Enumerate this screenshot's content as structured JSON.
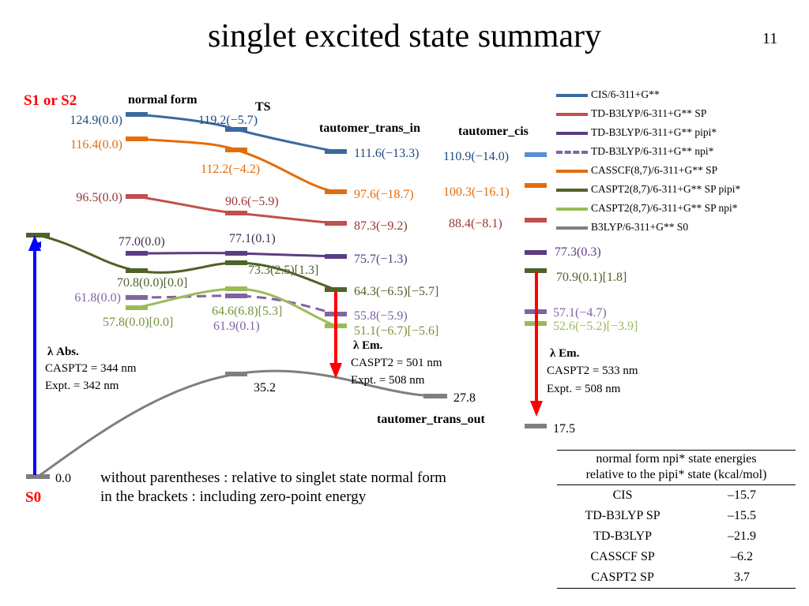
{
  "slide": {
    "title": "singlet excited state summary",
    "page_number": "11"
  },
  "colors": {
    "cis": "#3a6aa0",
    "td_sp": "#c0504d",
    "td_pipi": "#5a3d82",
    "td_npi": "#8064a2",
    "casscf": "#e46c0a",
    "caspt2_pipi": "#4f6228",
    "caspt2_npi": "#9bbb59",
    "b3lyp_s0": "#7f7f7f",
    "arrow_abs": "#0000ff",
    "arrow_em": "#ff0000",
    "state_label": "#ff0000",
    "cis_right": "#558ed5"
  },
  "columns": {
    "normal_form": "normal form",
    "ts": "TS",
    "tautomer_trans_in": "tautomer_trans_in",
    "tautomer_cis": "tautomer_cis",
    "tautomer_trans_out": "tautomer_trans_out"
  },
  "state_labels": {
    "s1_s2": "S1 or S2",
    "s0": "S0"
  },
  "energies": {
    "cis": {
      "normal": "124.9(0.0)",
      "ts": "119.2(−5.7)",
      "trans_in": "111.6(−13.3)",
      "cis": "110.9(−14.0)"
    },
    "casscf": {
      "normal": "116.4(0.0)",
      "ts": "112.2(−4.2)",
      "trans_in": "97.6(−18.7)",
      "cis": "100.3(−16.1)"
    },
    "td_sp": {
      "normal": "96.5(0.0)",
      "ts": "90.6(−5.9)",
      "trans_in": "87.3(−9.2)",
      "cis": "88.4(−8.1)"
    },
    "td_pipi": {
      "normal": "77.0(0.0)",
      "ts": "77.1(0.1)",
      "trans_in": "75.7(−1.3)",
      "cis": "77.3(0.3)"
    },
    "caspt2_pipi": {
      "normal": "70.8(0.0)[0.0]",
      "ts": "73.3(2.5)[1.3]",
      "trans_in": "64.3(−6.5)[−5.7]",
      "cis": "70.9(0.1)[1.8]"
    },
    "td_npi": {
      "normal": "61.8(0.0)",
      "ts": "61.9(0.1)",
      "trans_in": "55.8(−5.9)",
      "cis": "57.1(−4.7)"
    },
    "caspt2_npi": {
      "normal": "57.8(0.0)[0.0]",
      "ts": "64.6(6.8)[5.3]",
      "trans_in": "51.1(−6.7)[−5.6]",
      "cis": "52.6(−5.2)[−3.9]"
    },
    "s0": {
      "normal": "0.0",
      "ts": "35.2",
      "trans_out": "27.8",
      "cis": "17.5"
    }
  },
  "annotations": {
    "abs": {
      "title": "λ Abs.",
      "calc": "CASPT2 = 344 nm",
      "expt": "Expt. = 342 nm"
    },
    "em1": {
      "title": "λ Em.",
      "calc": "CASPT2 = 501 nm",
      "expt": "Expt. = 508 nm"
    },
    "em2": {
      "title": "λ Em.",
      "calc": "CASPT2 = 533 nm",
      "expt": "Expt. = 508 nm"
    }
  },
  "legend": [
    {
      "label": "CIS/6-311+G**",
      "color": "#3a6aa0",
      "dashed": false
    },
    {
      "label": "TD-B3LYP/6-311+G** SP",
      "color": "#c0504d",
      "dashed": false
    },
    {
      "label": "TD-B3LYP/6-311+G** pipi*",
      "color": "#5a3d82",
      "dashed": false
    },
    {
      "label": "TD-B3LYP/6-311+G** npi*",
      "color": "#8064a2",
      "dashed": true
    },
    {
      "label": "CASSCF(8,7)/6-311+G** SP",
      "color": "#e46c0a",
      "dashed": false
    },
    {
      "label": "CASPT2(8,7)/6-311+G** SP pipi*",
      "color": "#4f6228",
      "dashed": false
    },
    {
      "label": "CASPT2(8,7)/6-311+G** SP npi*",
      "color": "#9bbb59",
      "dashed": false
    },
    {
      "label": "B3LYP/6-311+G** S0",
      "color": "#7f7f7f",
      "dashed": false
    }
  ],
  "notes": {
    "line1": "without parentheses : relative to singlet state normal form",
    "line2": "in the brackets : including zero-point energy"
  },
  "table": {
    "header_line1": "normal form npi* state energies",
    "header_line2": "relative to the pipi* state (kcal/mol)",
    "rows": [
      {
        "method": "CIS",
        "value": "–15.7"
      },
      {
        "method": "TD-B3LYP SP",
        "value": "–15.5"
      },
      {
        "method": "TD-B3LYP",
        "value": "–21.9"
      },
      {
        "method": "CASSCF SP",
        "value": "–6.2"
      },
      {
        "method": "CASPT2 SP",
        "value": "3.7"
      }
    ]
  }
}
